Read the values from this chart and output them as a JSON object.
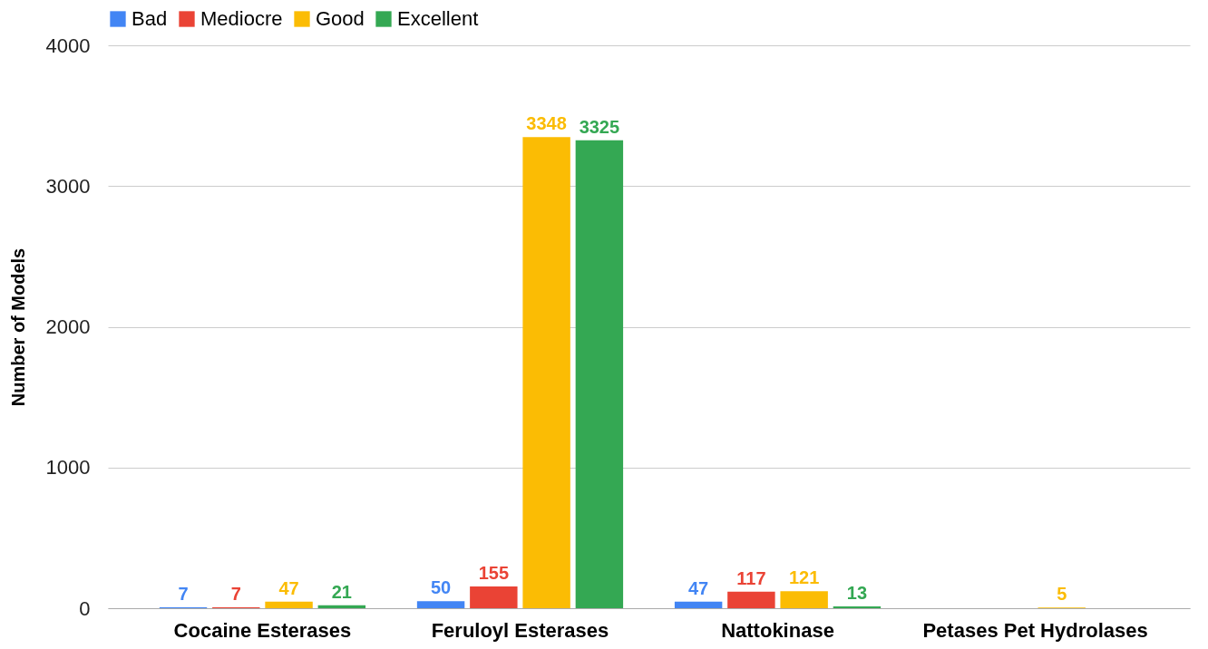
{
  "chart_data": {
    "type": "bar",
    "ylabel": "Number of Models",
    "categories": [
      "Cocaine Esterases",
      "Feruloyl Esterases",
      "Nattokinase",
      "Petases Pet Hydrolases"
    ],
    "series": [
      {
        "name": "Bad",
        "color": "#4285f4",
        "values": [
          7,
          50,
          47,
          null
        ]
      },
      {
        "name": "Mediocre",
        "color": "#ea4335",
        "values": [
          7,
          155,
          117,
          null
        ]
      },
      {
        "name": "Good",
        "color": "#fbbc04",
        "values": [
          47,
          3348,
          121,
          5
        ]
      },
      {
        "name": "Excellent",
        "color": "#34a853",
        "values": [
          21,
          3325,
          13,
          null
        ]
      }
    ],
    "ylim": [
      0,
      4000
    ],
    "yticks": [
      0,
      1000,
      2000,
      3000,
      4000
    ],
    "grid": "y",
    "legend": "top",
    "data_labels": true
  }
}
